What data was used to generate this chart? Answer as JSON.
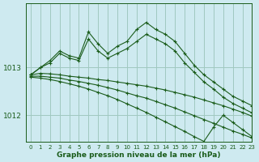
{
  "xlabel": "Graphe pression niveau de la mer (hPa)",
  "ylabel": "",
  "background_color": "#ceeaf0",
  "grid_color": "#a0c8c0",
  "line_color": "#1a5c1a",
  "xlim": [
    -0.5,
    23
  ],
  "ylim": [
    1011.45,
    1014.35
  ],
  "ytick_positions": [
    1012,
    1013
  ],
  "ytick_labels": [
    "1012",
    "1013"
  ],
  "xticks": [
    0,
    1,
    2,
    3,
    4,
    5,
    6,
    7,
    8,
    9,
    10,
    11,
    12,
    13,
    14,
    15,
    16,
    17,
    18,
    19,
    20,
    21,
    22,
    23
  ],
  "lines": [
    {
      "x": [
        0,
        1,
        2,
        3,
        4,
        5,
        6,
        7,
        8,
        9,
        10,
        11,
        12,
        13,
        14,
        15,
        16,
        17,
        18,
        19,
        20,
        21,
        22,
        23
      ],
      "y": [
        1012.85,
        1013.0,
        1013.15,
        1013.35,
        1013.25,
        1013.2,
        1013.75,
        1013.5,
        1013.3,
        1013.45,
        1013.55,
        1013.8,
        1013.95,
        1013.8,
        1013.7,
        1013.55,
        1013.3,
        1013.05,
        1012.85,
        1012.7,
        1012.55,
        1012.4,
        1012.3,
        1012.2
      ]
    },
    {
      "x": [
        0,
        1,
        2,
        3,
        4,
        5,
        6,
        7,
        8,
        9,
        10,
        11,
        12,
        13,
        14,
        15,
        16,
        17,
        18,
        19,
        20,
        21,
        22,
        23
      ],
      "y": [
        1012.85,
        1013.0,
        1013.1,
        1013.3,
        1013.2,
        1013.15,
        1013.6,
        1013.35,
        1013.2,
        1013.3,
        1013.4,
        1013.55,
        1013.7,
        1013.6,
        1013.5,
        1013.35,
        1013.1,
        1012.9,
        1012.7,
        1012.55,
        1012.38,
        1012.25,
        1012.15,
        1012.05
      ]
    },
    {
      "x": [
        0,
        1,
        2,
        3,
        4,
        5,
        6,
        7,
        8,
        9,
        10,
        11,
        12,
        13,
        14,
        15,
        16,
        17,
        18,
        19,
        20,
        21,
        22,
        23
      ],
      "y": [
        1012.85,
        1012.88,
        1012.87,
        1012.85,
        1012.82,
        1012.8,
        1012.78,
        1012.75,
        1012.73,
        1012.7,
        1012.67,
        1012.64,
        1012.61,
        1012.57,
        1012.53,
        1012.48,
        1012.43,
        1012.38,
        1012.32,
        1012.26,
        1012.2,
        1012.13,
        1012.06,
        1011.98
      ]
    },
    {
      "x": [
        0,
        1,
        2,
        3,
        4,
        5,
        6,
        7,
        8,
        9,
        10,
        11,
        12,
        13,
        14,
        15,
        16,
        17,
        18,
        19,
        20,
        21,
        22,
        23
      ],
      "y": [
        1012.82,
        1012.82,
        1012.8,
        1012.78,
        1012.74,
        1012.71,
        1012.67,
        1012.63,
        1012.58,
        1012.53,
        1012.47,
        1012.41,
        1012.36,
        1012.29,
        1012.22,
        1012.15,
        1012.07,
        1011.99,
        1011.91,
        1011.83,
        1011.75,
        1011.67,
        1011.6,
        1011.52
      ]
    },
    {
      "x": [
        0,
        1,
        2,
        3,
        4,
        5,
        6,
        7,
        8,
        9,
        10,
        11,
        12,
        13,
        14,
        15,
        16,
        17,
        18,
        19,
        20,
        21,
        22,
        23
      ],
      "y": [
        1012.8,
        1012.78,
        1012.75,
        1012.71,
        1012.66,
        1012.61,
        1012.55,
        1012.48,
        1012.41,
        1012.33,
        1012.24,
        1012.15,
        1012.06,
        1011.96,
        1011.86,
        1011.76,
        1011.66,
        1011.55,
        1011.45,
        1011.75,
        1012.0,
        1011.85,
        1011.7,
        1011.55
      ]
    }
  ]
}
